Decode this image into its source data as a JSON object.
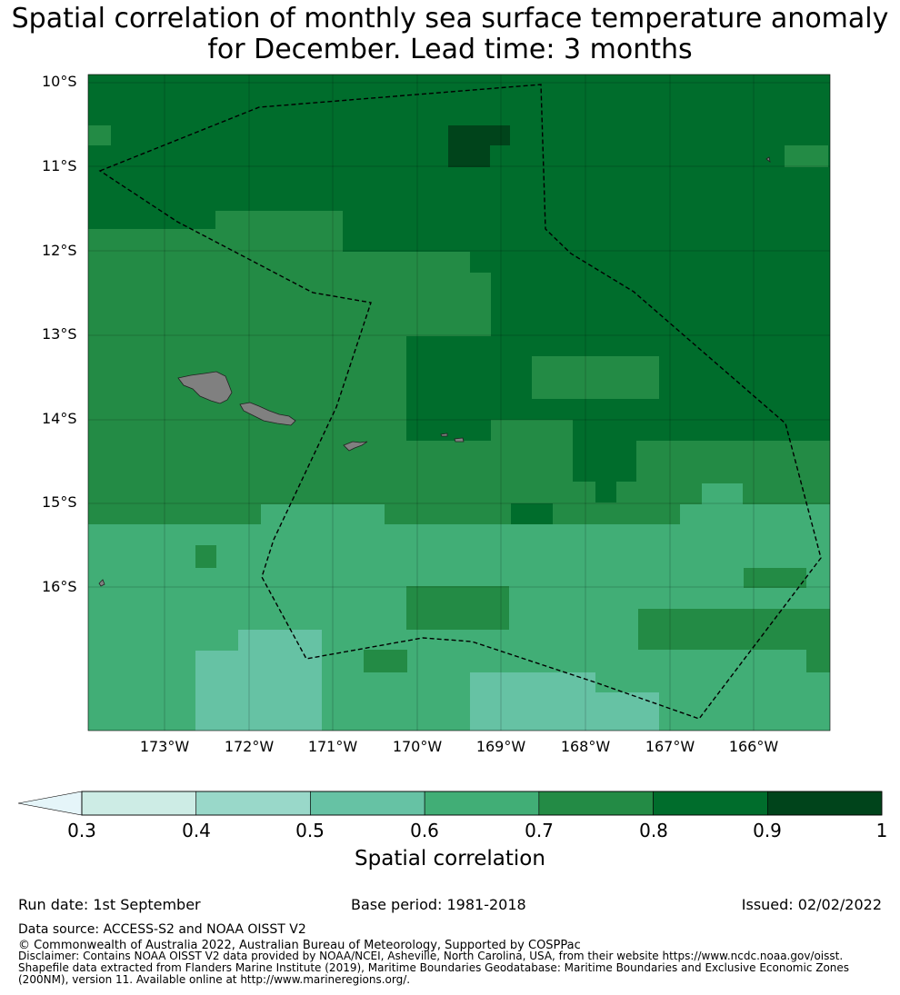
{
  "title": {
    "line1": "Spatial correlation of monthly sea surface temperature anomaly",
    "line2": "for December. Lead time: 3 months"
  },
  "map": {
    "lat_labels": [
      "10°S",
      "11°S",
      "12°S",
      "13°S",
      "14°S",
      "15°S",
      "16°S"
    ],
    "lon_labels": [
      "173°W",
      "172°W",
      "171°W",
      "170°W",
      "169°W",
      "168°W",
      "167°W",
      "166°W"
    ],
    "land_color": "#808080",
    "boundary_style": "dashed",
    "grid": true
  },
  "colorbar": {
    "ticks": [
      "0.3",
      "0.4",
      "0.5",
      "0.6",
      "0.7",
      "0.8",
      "0.9",
      "1"
    ],
    "colors": [
      "#cdece5",
      "#99d8c9",
      "#66c2a4",
      "#41ae76",
      "#238b45",
      "#006d2c",
      "#00441b"
    ],
    "extend_color": "#e5f5f9",
    "label": "Spatial correlation"
  },
  "footer": {
    "run_date": "Run date: 1st September",
    "base_period": "Base period: 1981-2018",
    "issued": "Issued: 02/02/2022",
    "data_source": "Data source: ACCESS-S2 and NOAA OISST V2",
    "copyright": "© Commonwealth of Australia 2022, Australian Bureau of Meteorology, Supported by COSPPac",
    "disclaimer1": "Disclaimer: Contains NOAA OISST V2 data provided by NOAA/NCEI, Asheville, North Carolina, USA, from their website https://www.ncdc.noaa.gov/oisst.",
    "disclaimer2": "Shapefile data extracted from Flanders Marine Institute (2019), Maritime Boundaries Geodatabase: Maritime Boundaries and Exclusive Economic Zones",
    "disclaimer3": "(200NM), version 11. Available online at http://www.marineregions.org/."
  }
}
